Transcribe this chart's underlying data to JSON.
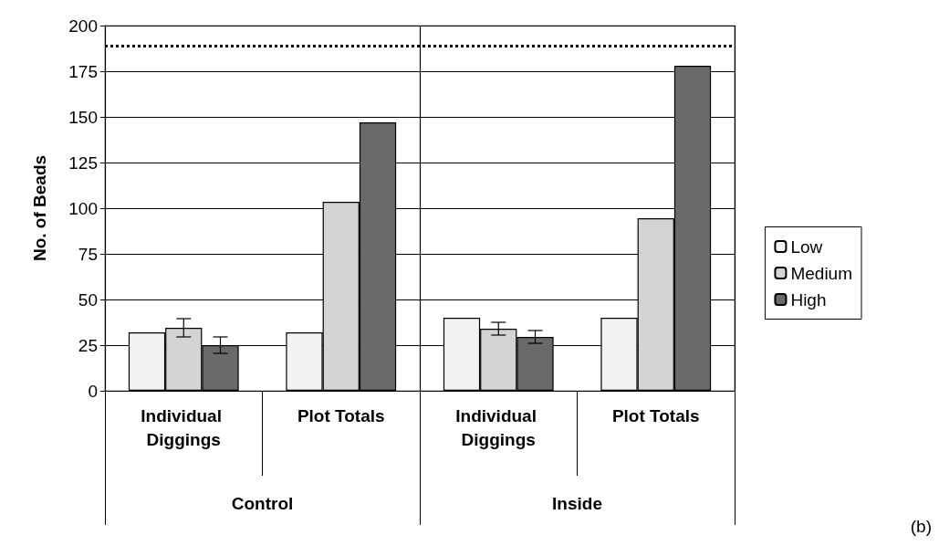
{
  "chart_data": {
    "type": "bar",
    "ylabel": "No. of Beads",
    "categories": [
      "Individual Diggings",
      "Plot Totals",
      "Individual Diggings",
      "Plot Totals"
    ],
    "series": [
      {
        "name": "Low",
        "color": "#f2f2f2",
        "values": [
          32,
          32,
          40,
          40
        ]
      },
      {
        "name": "Medium",
        "color": "#d4d4d4",
        "values": [
          34.5,
          103.5,
          34,
          94.5
        ],
        "errors": [
          5,
          null,
          3.5,
          null
        ]
      },
      {
        "name": "High",
        "color": "#6a6a6a",
        "values": [
          25,
          147,
          29.5,
          178
        ],
        "errors": [
          4.5,
          null,
          3.5,
          null
        ]
      }
    ],
    "ylim": [
      0,
      200
    ],
    "yticks": [
      0,
      25,
      50,
      75,
      100,
      125,
      150,
      175,
      200
    ],
    "grid": "y",
    "legend": "right",
    "ref_lines": [
      {
        "axis": "y",
        "value": 189,
        "line_style": "dotted",
        "color": "#000000"
      }
    ],
    "annotations": [
      "Control",
      "Inside",
      "(b)"
    ]
  }
}
